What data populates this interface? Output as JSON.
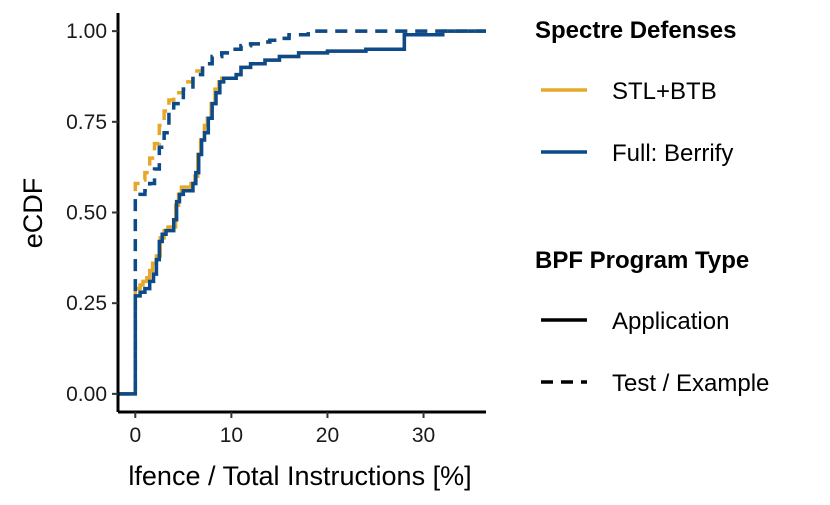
{
  "chart_data": {
    "type": "line",
    "step": true,
    "xlabel": "lfence / Total Instructions [%]",
    "ylabel": "eCDF",
    "xlim": [
      -1.8,
      36.5
    ],
    "ylim": [
      -0.05,
      1.05
    ],
    "x_ticks": [
      0,
      10,
      20,
      30
    ],
    "x_tick_labels": [
      "0",
      "10",
      "20",
      "30"
    ],
    "y_ticks": [
      0,
      0.25,
      0.5,
      0.75,
      1.0
    ],
    "y_tick_labels": [
      "0.00",
      "0.25",
      "0.50",
      "0.75",
      "1.00"
    ],
    "colors": {
      "STL+BTB": "#E6A829",
      "Full: Berrify": "#0B4A8B"
    },
    "legends": [
      {
        "title": "Spectre Defenses",
        "entries": [
          {
            "label": "STL+BTB",
            "color": "#E6A829",
            "dash": "solid"
          },
          {
            "label": "Full: Berrify",
            "color": "#0B4A8B",
            "dash": "solid"
          }
        ]
      },
      {
        "title": "BPF Program Type",
        "entries": [
          {
            "label": "Application",
            "color": "#000000",
            "dash": "solid"
          },
          {
            "label": "Test / Example",
            "color": "#000000",
            "dash": "dashed"
          }
        ]
      }
    ],
    "series": [
      {
        "name": "STL+BTB / Application",
        "defense": "STL+BTB",
        "program_type": "Application",
        "dash": "solid",
        "points": [
          [
            -1.8,
            0
          ],
          [
            0,
            0
          ],
          [
            0,
            0.29
          ],
          [
            0.5,
            0.3
          ],
          [
            0.8,
            0.31
          ],
          [
            1.2,
            0.32
          ],
          [
            1.5,
            0.34
          ],
          [
            1.8,
            0.36
          ],
          [
            2.2,
            0.38
          ],
          [
            2.6,
            0.43
          ],
          [
            3.0,
            0.45
          ],
          [
            3.4,
            0.46
          ],
          [
            3.8,
            0.46
          ],
          [
            4.2,
            0.52
          ],
          [
            4.5,
            0.55
          ],
          [
            4.8,
            0.57
          ],
          [
            5.3,
            0.57
          ],
          [
            5.8,
            0.58
          ],
          [
            6.2,
            0.6
          ],
          [
            6.5,
            0.66
          ],
          [
            6.8,
            0.7
          ],
          [
            7.2,
            0.74
          ],
          [
            7.5,
            0.76
          ],
          [
            7.9,
            0.8
          ],
          [
            8.3,
            0.84
          ],
          [
            8.7,
            0.86
          ],
          [
            9.0,
            0.87
          ],
          [
            10.0,
            0.87
          ],
          [
            10.5,
            0.88
          ],
          [
            11.0,
            0.9
          ],
          [
            12.0,
            0.91
          ],
          [
            13.5,
            0.92
          ],
          [
            15.0,
            0.93
          ],
          [
            17.0,
            0.94
          ],
          [
            20.0,
            0.945
          ],
          [
            24.0,
            0.95
          ],
          [
            27.5,
            0.95
          ],
          [
            28.0,
            0.99
          ],
          [
            32.0,
            1.0
          ],
          [
            36.5,
            1.0
          ]
        ]
      },
      {
        "name": "Full: Berrify / Application",
        "defense": "Full: Berrify",
        "program_type": "Application",
        "dash": "solid",
        "points": [
          [
            -1.8,
            0
          ],
          [
            0,
            0
          ],
          [
            0,
            0.27
          ],
          [
            0.5,
            0.28
          ],
          [
            1.0,
            0.29
          ],
          [
            1.5,
            0.31
          ],
          [
            1.9,
            0.33
          ],
          [
            2.2,
            0.37
          ],
          [
            2.5,
            0.42
          ],
          [
            2.8,
            0.44
          ],
          [
            3.2,
            0.45
          ],
          [
            3.6,
            0.45
          ],
          [
            4.0,
            0.48
          ],
          [
            4.3,
            0.53
          ],
          [
            4.6,
            0.55
          ],
          [
            5.0,
            0.56
          ],
          [
            5.5,
            0.56
          ],
          [
            6.0,
            0.58
          ],
          [
            6.3,
            0.61
          ],
          [
            6.6,
            0.66
          ],
          [
            6.9,
            0.7
          ],
          [
            7.2,
            0.72
          ],
          [
            7.6,
            0.76
          ],
          [
            8.0,
            0.8
          ],
          [
            8.4,
            0.83
          ],
          [
            8.8,
            0.86
          ],
          [
            9.2,
            0.87
          ],
          [
            10.0,
            0.87
          ],
          [
            10.5,
            0.88
          ],
          [
            11.0,
            0.9
          ],
          [
            12.0,
            0.91
          ],
          [
            13.5,
            0.92
          ],
          [
            15.0,
            0.93
          ],
          [
            17.0,
            0.94
          ],
          [
            20.0,
            0.945
          ],
          [
            24.0,
            0.95
          ],
          [
            27.5,
            0.95
          ],
          [
            28.0,
            0.99
          ],
          [
            32.0,
            1.0
          ],
          [
            36.5,
            1.0
          ]
        ]
      },
      {
        "name": "STL+BTB / Test / Example",
        "defense": "STL+BTB",
        "program_type": "Test / Example",
        "dash": "dashed",
        "points": [
          [
            -1.8,
            0
          ],
          [
            0,
            0
          ],
          [
            0,
            0.58
          ],
          [
            0.5,
            0.59
          ],
          [
            1.0,
            0.61
          ],
          [
            1.5,
            0.65
          ],
          [
            2.0,
            0.69
          ],
          [
            2.5,
            0.74
          ],
          [
            3.0,
            0.78
          ],
          [
            3.5,
            0.81
          ],
          [
            4.0,
            0.83
          ],
          [
            5.0,
            0.86
          ],
          [
            6.0,
            0.89
          ],
          [
            7.0,
            0.91
          ],
          [
            8.0,
            0.93
          ],
          [
            9.0,
            0.94
          ],
          [
            10.0,
            0.95
          ],
          [
            11.0,
            0.96
          ],
          [
            12.0,
            0.965
          ],
          [
            13.0,
            0.97
          ],
          [
            14.0,
            0.975
          ],
          [
            15.0,
            0.98
          ],
          [
            16.0,
            0.99
          ],
          [
            18.0,
            1.0
          ],
          [
            36.5,
            1.0
          ]
        ]
      },
      {
        "name": "Full: Berrify / Test / Example",
        "defense": "Full: Berrify",
        "program_type": "Test / Example",
        "dash": "dashed",
        "points": [
          [
            -1.8,
            0
          ],
          [
            0,
            0
          ],
          [
            0,
            0.54
          ],
          [
            0.5,
            0.55
          ],
          [
            1.0,
            0.56
          ],
          [
            1.5,
            0.58
          ],
          [
            2.0,
            0.62
          ],
          [
            2.5,
            0.68
          ],
          [
            3.0,
            0.72
          ],
          [
            3.5,
            0.77
          ],
          [
            4.0,
            0.8
          ],
          [
            5.0,
            0.84
          ],
          [
            6.0,
            0.88
          ],
          [
            7.0,
            0.91
          ],
          [
            8.0,
            0.93
          ],
          [
            9.0,
            0.94
          ],
          [
            10.0,
            0.95
          ],
          [
            11.0,
            0.96
          ],
          [
            12.0,
            0.965
          ],
          [
            13.0,
            0.97
          ],
          [
            14.0,
            0.975
          ],
          [
            15.0,
            0.98
          ],
          [
            16.0,
            0.99
          ],
          [
            18.0,
            1.0
          ],
          [
            36.5,
            1.0
          ]
        ]
      }
    ]
  }
}
